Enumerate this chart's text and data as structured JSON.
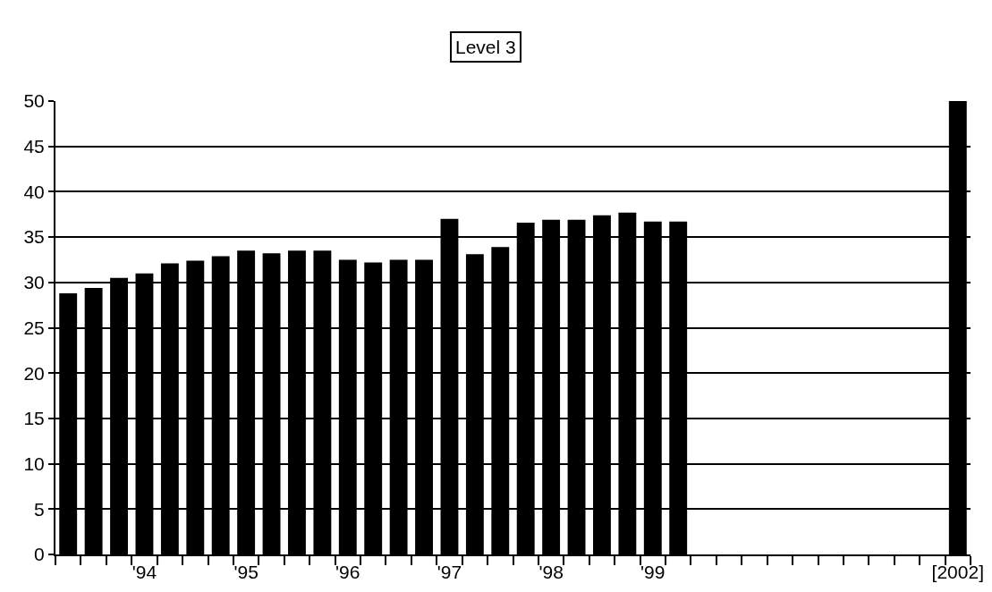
{
  "chart_data": {
    "type": "bar",
    "title": "Level 3",
    "categories": [
      null,
      null,
      null,
      "'94",
      null,
      null,
      null,
      "'95",
      null,
      null,
      null,
      "'96",
      null,
      null,
      null,
      "'97",
      null,
      null,
      null,
      "'98",
      null,
      null,
      null,
      "'99",
      null,
      null,
      null,
      null,
      null,
      null,
      null,
      null,
      null,
      null,
      null,
      "[2002]"
    ],
    "values": [
      28.8,
      29.4,
      30.5,
      31.0,
      32.1,
      32.4,
      32.9,
      33.5,
      33.2,
      33.5,
      33.5,
      32.5,
      32.2,
      32.5,
      32.5,
      37.0,
      33.1,
      33.9,
      36.6,
      36.9,
      36.9,
      37.4,
      37.7,
      36.7,
      36.7,
      null,
      null,
      null,
      null,
      null,
      null,
      null,
      null,
      null,
      null,
      50
    ],
    "color": "#000000",
    "ylim": [
      0,
      50
    ],
    "yticks": [
      0,
      5,
      10,
      15,
      20,
      25,
      30,
      35,
      40,
      45,
      50
    ],
    "grid": "y"
  }
}
